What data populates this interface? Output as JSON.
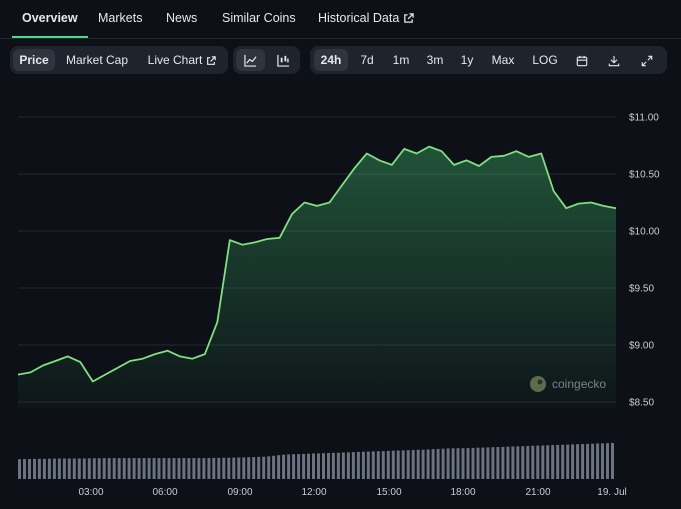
{
  "tabs": [
    {
      "label": "Overview",
      "active": true
    },
    {
      "label": "Markets"
    },
    {
      "label": "News"
    },
    {
      "label": "Similar Coins"
    },
    {
      "label": "Historical Data",
      "external": true
    }
  ],
  "chart_type_tabs": [
    {
      "label": "Price",
      "active": true
    },
    {
      "label": "Market Cap"
    },
    {
      "label": "Live Chart",
      "external": true
    }
  ],
  "view_icons": [
    "line-chart-icon",
    "candlestick-chart-icon"
  ],
  "ranges": [
    {
      "label": "24h",
      "active": true
    },
    {
      "label": "7d"
    },
    {
      "label": "1m"
    },
    {
      "label": "3m"
    },
    {
      "label": "1y"
    },
    {
      "label": "Max"
    },
    {
      "label": "LOG"
    }
  ],
  "tool_icons": [
    "calendar-icon",
    "download-icon",
    "expand-icon"
  ],
  "watermark": "coingecko",
  "colors": {
    "accent": "#4ade80",
    "line": "#7ee07e",
    "volume": "#6b7280",
    "background": "#0d1117"
  },
  "chart_data": {
    "type": "area",
    "y_ticks": [
      "$11.00",
      "$10.50",
      "$10.00",
      "$9.50",
      "$9.00",
      "$8.50"
    ],
    "x_ticks": [
      "03:00",
      "06:00",
      "09:00",
      "12:00",
      "15:00",
      "18:00",
      "21:00",
      "19. Jul"
    ],
    "ylim": [
      8.5,
      11.0
    ],
    "grid": true,
    "price_series": [
      {
        "t": "00:00",
        "v": 8.74
      },
      {
        "t": "00:30",
        "v": 8.76
      },
      {
        "t": "01:00",
        "v": 8.82
      },
      {
        "t": "01:30",
        "v": 8.86
      },
      {
        "t": "02:00",
        "v": 8.9
      },
      {
        "t": "02:30",
        "v": 8.85
      },
      {
        "t": "03:00",
        "v": 8.68
      },
      {
        "t": "03:30",
        "v": 8.74
      },
      {
        "t": "04:00",
        "v": 8.8
      },
      {
        "t": "04:30",
        "v": 8.86
      },
      {
        "t": "05:00",
        "v": 8.88
      },
      {
        "t": "05:30",
        "v": 8.92
      },
      {
        "t": "06:00",
        "v": 8.95
      },
      {
        "t": "06:30",
        "v": 8.9
      },
      {
        "t": "07:00",
        "v": 8.88
      },
      {
        "t": "07:30",
        "v": 8.92
      },
      {
        "t": "08:00",
        "v": 9.2
      },
      {
        "t": "08:30",
        "v": 9.92
      },
      {
        "t": "09:00",
        "v": 9.88
      },
      {
        "t": "09:30",
        "v": 9.9
      },
      {
        "t": "10:00",
        "v": 9.93
      },
      {
        "t": "10:30",
        "v": 9.94
      },
      {
        "t": "11:00",
        "v": 10.15
      },
      {
        "t": "11:30",
        "v": 10.25
      },
      {
        "t": "12:00",
        "v": 10.22
      },
      {
        "t": "12:30",
        "v": 10.25
      },
      {
        "t": "13:00",
        "v": 10.4
      },
      {
        "t": "13:30",
        "v": 10.55
      },
      {
        "t": "14:00",
        "v": 10.68
      },
      {
        "t": "14:30",
        "v": 10.62
      },
      {
        "t": "15:00",
        "v": 10.58
      },
      {
        "t": "15:30",
        "v": 10.72
      },
      {
        "t": "16:00",
        "v": 10.68
      },
      {
        "t": "16:30",
        "v": 10.74
      },
      {
        "t": "17:00",
        "v": 10.7
      },
      {
        "t": "17:30",
        "v": 10.58
      },
      {
        "t": "18:00",
        "v": 10.62
      },
      {
        "t": "18:30",
        "v": 10.57
      },
      {
        "t": "19:00",
        "v": 10.65
      },
      {
        "t": "19:30",
        "v": 10.66
      },
      {
        "t": "20:00",
        "v": 10.7
      },
      {
        "t": "20:30",
        "v": 10.65
      },
      {
        "t": "21:00",
        "v": 10.68
      },
      {
        "t": "21:30",
        "v": 10.35
      },
      {
        "t": "22:00",
        "v": 10.2
      },
      {
        "t": "22:30",
        "v": 10.24
      },
      {
        "t": "23:00",
        "v": 10.25
      },
      {
        "t": "23:30",
        "v": 10.22
      },
      {
        "t": "24:00",
        "v": 10.2
      }
    ],
    "volume_series": [
      0.55,
      0.56,
      0.57,
      0.57,
      0.58,
      0.58,
      0.58,
      0.58,
      0.58,
      0.58,
      0.59,
      0.6,
      0.62,
      0.68,
      0.7,
      0.72,
      0.74,
      0.76,
      0.78,
      0.8,
      0.82,
      0.85,
      0.86,
      0.88,
      0.9,
      0.92,
      0.94,
      0.96,
      0.98,
      1.0
    ]
  }
}
